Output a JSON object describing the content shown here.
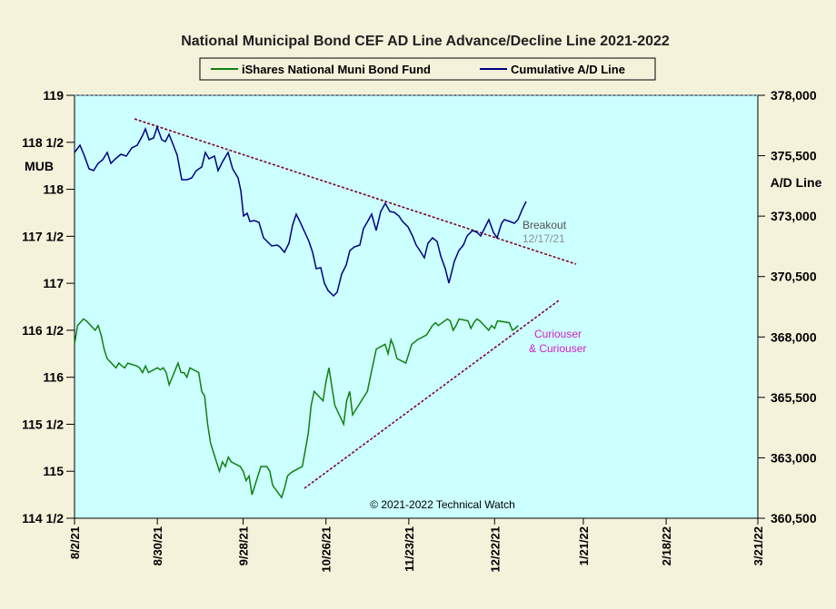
{
  "chart_data": {
    "type": "line",
    "title": "National Municipal Bond CEF AD Line Advance/Decline Line 2021-2022",
    "left_axis": {
      "label": "MUB",
      "range": [
        114.5,
        119
      ],
      "ticks": [
        114.5,
        115,
        115.5,
        116,
        116.5,
        117,
        117.5,
        118,
        118.5,
        119
      ],
      "tick_labels": [
        "114 1/2",
        "115",
        "115 1/2",
        "116",
        "116 1/2",
        "117",
        "117 1/2",
        "118",
        "118 1/2",
        "119"
      ]
    },
    "right_axis": {
      "label": "A/D Line",
      "range": [
        360500,
        378000
      ],
      "ticks": [
        360500,
        363000,
        365500,
        368000,
        370500,
        373000,
        375500,
        378000
      ],
      "tick_labels": [
        "360,500",
        "363,000",
        "365,500",
        "368,000",
        "370,500",
        "373,000",
        "375,500",
        "378,000"
      ]
    },
    "x_axis": {
      "range": [
        "2021-08-02",
        "2022-03-21"
      ],
      "ticks": [
        "2021-08-02",
        "2021-08-30",
        "2021-09-28",
        "2021-10-26",
        "2021-11-23",
        "2021-12-22",
        "2022-01-21",
        "2022-02-18",
        "2022-03-21"
      ],
      "tick_labels": [
        "8/2/21",
        "8/30/21",
        "9/28/21",
        "10/26/21",
        "11/23/21",
        "12/22/21",
        "1/21/22",
        "2/18/22",
        "3/21/22"
      ]
    },
    "legend": {
      "placement": "top-center"
    },
    "grid": false,
    "series": [
      {
        "name": "iShares National Muni Bond Fund",
        "axis": "left",
        "color": "#108010",
        "x": [
          "2021-08-02",
          "2021-08-03",
          "2021-08-05",
          "2021-08-06",
          "2021-08-09",
          "2021-08-10",
          "2021-08-11",
          "2021-08-12",
          "2021-08-13",
          "2021-08-16",
          "2021-08-17",
          "2021-08-18",
          "2021-08-19",
          "2021-08-20",
          "2021-08-23",
          "2021-08-24",
          "2021-08-25",
          "2021-08-26",
          "2021-08-27",
          "2021-08-30",
          "2021-08-31",
          "2021-09-01",
          "2021-09-02",
          "2021-09-03",
          "2021-09-06",
          "2021-09-07",
          "2021-09-08",
          "2021-09-09",
          "2021-09-10",
          "2021-09-13",
          "2021-09-14",
          "2021-09-15",
          "2021-09-16",
          "2021-09-17",
          "2021-09-20",
          "2021-09-21",
          "2021-09-22",
          "2021-09-23",
          "2021-09-24",
          "2021-09-27",
          "2021-09-28",
          "2021-09-29",
          "2021-09-30",
          "2021-10-01",
          "2021-10-04",
          "2021-10-05",
          "2021-10-06",
          "2021-10-07",
          "2021-10-08",
          "2021-10-11",
          "2021-10-12",
          "2021-10-13",
          "2021-10-14",
          "2021-10-15",
          "2021-10-18",
          "2021-10-19",
          "2021-10-20",
          "2021-10-21",
          "2021-10-22",
          "2021-10-25",
          "2021-10-26",
          "2021-10-27",
          "2021-10-28",
          "2021-10-29",
          "2021-11-01",
          "2021-11-02",
          "2021-11-03",
          "2021-11-04",
          "2021-11-05",
          "2021-11-08",
          "2021-11-09",
          "2021-11-10",
          "2021-11-11",
          "2021-11-12",
          "2021-11-15",
          "2021-11-16",
          "2021-11-17",
          "2021-11-18",
          "2021-11-19",
          "2021-11-22",
          "2021-11-23",
          "2021-11-24",
          "2021-11-26",
          "2021-11-29",
          "2021-11-30",
          "2021-12-01",
          "2021-12-02",
          "2021-12-03",
          "2021-12-06",
          "2021-12-07",
          "2021-12-08",
          "2021-12-09",
          "2021-12-10",
          "2021-12-13",
          "2021-12-14",
          "2021-12-15",
          "2021-12-16",
          "2021-12-17",
          "2021-12-20",
          "2021-12-21",
          "2021-12-22",
          "2021-12-23",
          "2021-12-27",
          "2021-12-28",
          "2021-12-29",
          "2021-12-30"
        ],
        "values": [
          116.35,
          116.55,
          116.62,
          116.6,
          116.5,
          116.55,
          116.45,
          116.3,
          116.2,
          116.1,
          116.15,
          116.12,
          116.1,
          116.15,
          116.12,
          116.1,
          116.05,
          116.12,
          116.05,
          116.1,
          116.08,
          116.1,
          116.05,
          115.92,
          116.15,
          116.05,
          116.05,
          116.0,
          116.1,
          116.05,
          115.85,
          115.8,
          115.5,
          115.3,
          115.0,
          115.1,
          115.05,
          115.15,
          115.1,
          115.05,
          115.0,
          114.9,
          114.95,
          114.75,
          115.05,
          115.05,
          115.05,
          115.0,
          114.85,
          114.72,
          114.82,
          114.95,
          114.98,
          115.0,
          115.05,
          115.22,
          115.4,
          115.7,
          115.85,
          115.75,
          115.95,
          116.1,
          115.9,
          115.7,
          115.5,
          115.75,
          115.85,
          115.6,
          115.65,
          115.8,
          115.85,
          116.0,
          116.15,
          116.3,
          116.35,
          116.25,
          116.4,
          116.32,
          116.2,
          116.15,
          116.25,
          116.35,
          116.4,
          116.45,
          116.5,
          116.55,
          116.58,
          116.55,
          116.62,
          116.6,
          116.5,
          116.55,
          116.62,
          116.6,
          116.52,
          116.58,
          116.62,
          116.6,
          116.5,
          116.55,
          116.52,
          116.6,
          116.58,
          116.5,
          116.52,
          116.55
        ],
        "note": "values are illustrative approximations of the plotted line"
      },
      {
        "name": "Cumulative A/D Line",
        "axis": "right",
        "color": "#000080",
        "note": "approximate"
      }
    ],
    "annotations": [
      {
        "text_lines": [
          "Breakout",
          "12/17/21"
        ],
        "color": "#505050"
      },
      {
        "text_lines": [
          "Curiouser",
          "& Curiouser"
        ],
        "color": "#d020c0"
      },
      {
        "text": "© 2021-2022  Technical Watch"
      }
    ]
  }
}
